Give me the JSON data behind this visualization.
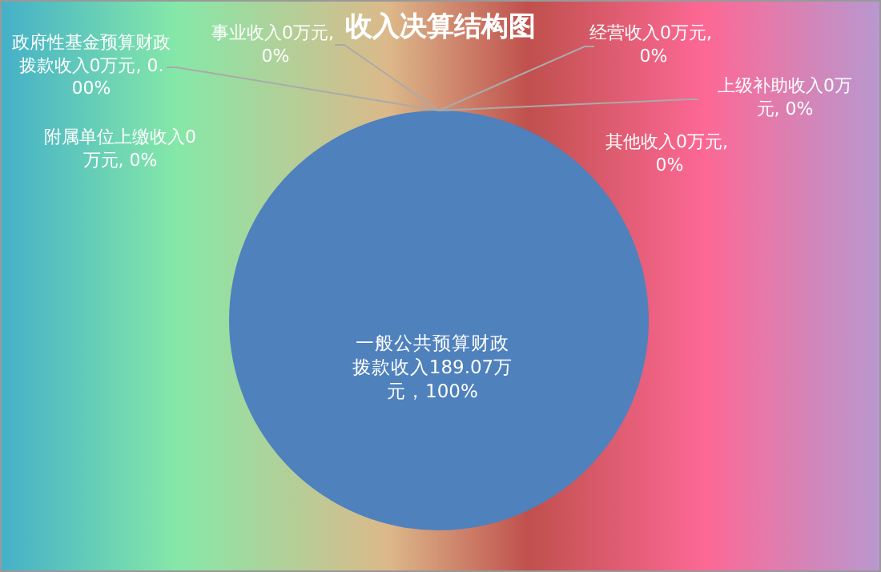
{
  "chart_data": {
    "type": "pie",
    "title": "收入决算结构图",
    "categories": [
      "一般公共预算财政拨款收入",
      "政府性基金预算财政拨款收入",
      "事业收入",
      "经营收入",
      "上级补助收入",
      "附属单位上缴收入",
      "其他收入"
    ],
    "values": [
      189.07,
      0,
      0,
      0,
      0,
      0,
      0
    ],
    "value_labels": [
      "189.07万元，100%",
      "0万元, 0.00%",
      "0万元, 0%",
      "0万元, 0%",
      "0万元, 0%",
      "0万元, 0%",
      "0万元, 0%"
    ],
    "colors": [
      "#4f81bd",
      "#c0504d",
      "#9bbb59",
      "#8064a2",
      "#4bacc6",
      "#f79646",
      "#2c4d75"
    ]
  }
}
